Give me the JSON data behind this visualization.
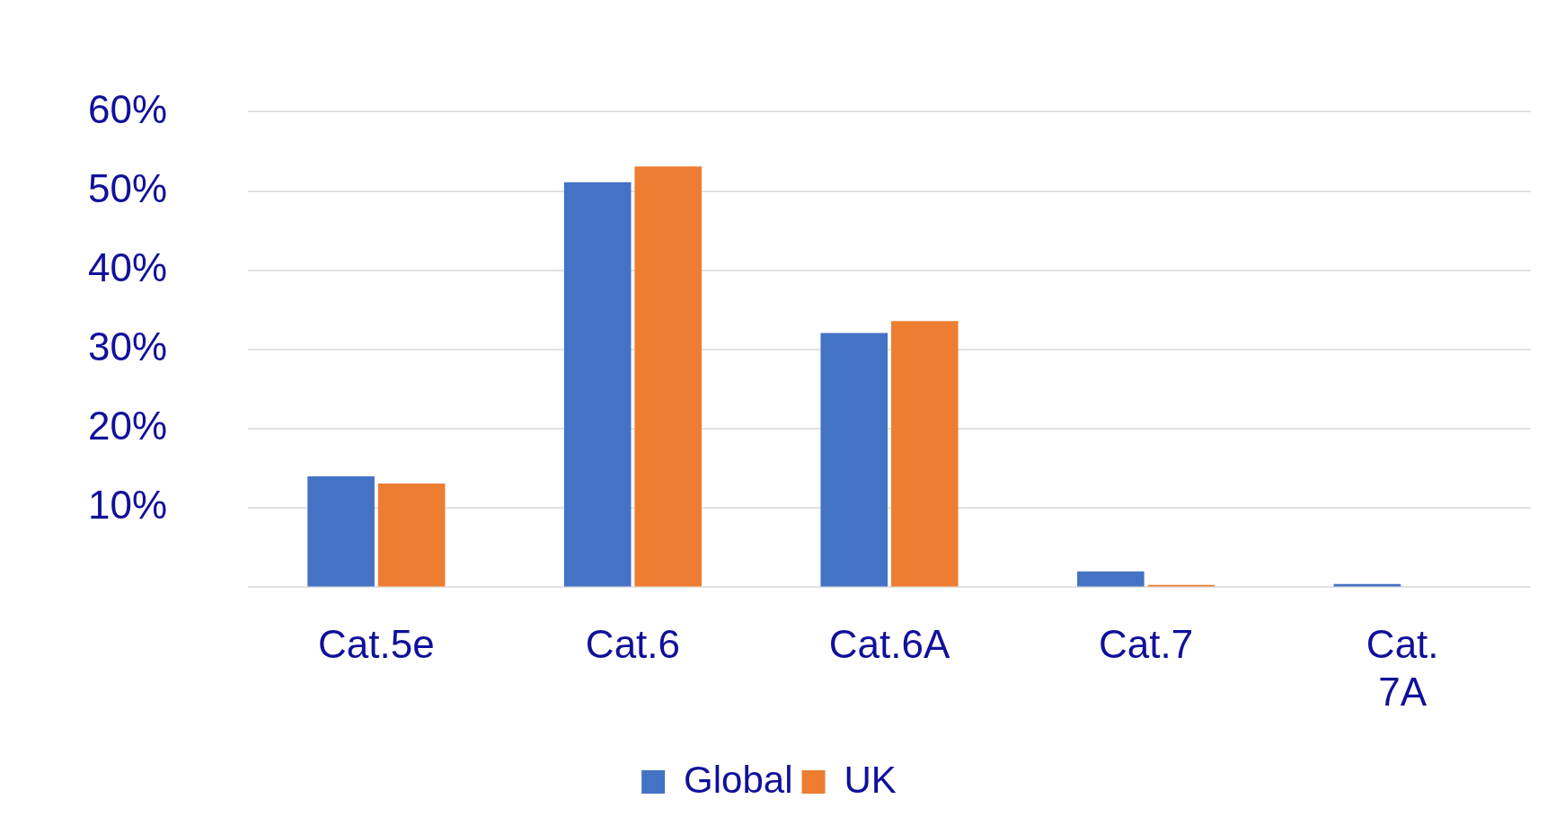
{
  "chart_data": {
    "type": "bar",
    "categories": [
      "Cat.5e",
      "Cat.6",
      "Cat.6A",
      "Cat.7",
      "Cat. 7A"
    ],
    "series": [
      {
        "name": "Global",
        "color": "#4472c4",
        "values": [
          14.0,
          51.1,
          32.1,
          2.0,
          0.4
        ]
      },
      {
        "name": "UK",
        "color": "#ed7d31",
        "values": [
          13.1,
          53.1,
          33.6,
          0.3,
          0
        ]
      }
    ],
    "ylim": [
      0,
      60
    ],
    "yticks": [
      {
        "value": 0,
        "label": null
      },
      {
        "value": 10,
        "label": "10%"
      },
      {
        "value": 20,
        "label": "20%"
      },
      {
        "value": 30,
        "label": "30%"
      },
      {
        "value": 40,
        "label": "40%"
      },
      {
        "value": 50,
        "label": "50%"
      },
      {
        "value": 60,
        "label": "60%"
      }
    ],
    "grid": "y",
    "legend": "bottom"
  }
}
